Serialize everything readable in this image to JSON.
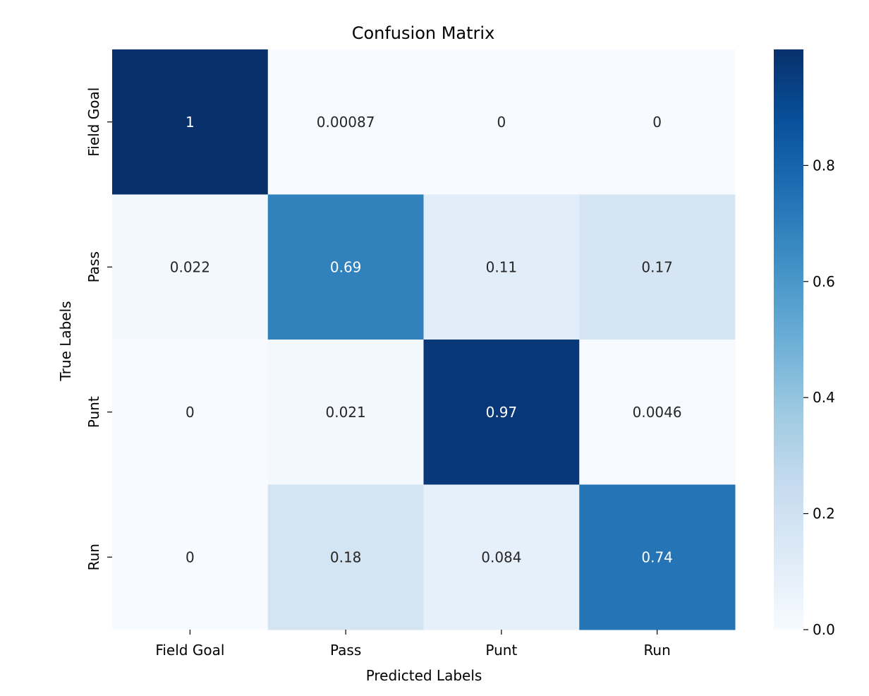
{
  "chart_data": {
    "type": "heatmap",
    "title": "Confusion Matrix",
    "xlabel": "Predicted Labels",
    "ylabel": "True Labels",
    "x_categories": [
      "Field Goal",
      "Pass",
      "Punt",
      "Run"
    ],
    "y_categories": [
      "Field Goal",
      "Pass",
      "Punt",
      "Run"
    ],
    "values": [
      [
        1,
        0.00087,
        0,
        0
      ],
      [
        0.022,
        0.69,
        0.11,
        0.17
      ],
      [
        0,
        0.021,
        0.97,
        0.0046
      ],
      [
        0,
        0.18,
        0.084,
        0.74
      ]
    ],
    "annotations": [
      [
        "1",
        "0.00087",
        "0",
        "0"
      ],
      [
        "0.022",
        "0.69",
        "0.11",
        "0.17"
      ],
      [
        "0",
        "0.021",
        "0.97",
        "0.0046"
      ],
      [
        "0",
        "0.18",
        "0.084",
        "0.74"
      ]
    ],
    "colormap": "Blues",
    "colormap_stops": [
      "#f7fbff",
      "#deebf7",
      "#c6dbef",
      "#9ecae1",
      "#6baed6",
      "#4292c6",
      "#2171b5",
      "#08519c",
      "#08306b"
    ],
    "vmin": 0,
    "vmax": 1,
    "colorbar_ticks": [
      0.0,
      0.2,
      0.4,
      0.6,
      0.8
    ],
    "colorbar_tick_labels": [
      "0.0",
      "0.2",
      "0.4",
      "0.6",
      "0.8"
    ],
    "text_colors": {
      "light": "#ffffff",
      "dark": "#262626"
    },
    "colorbar_position": "right",
    "grid": false
  }
}
